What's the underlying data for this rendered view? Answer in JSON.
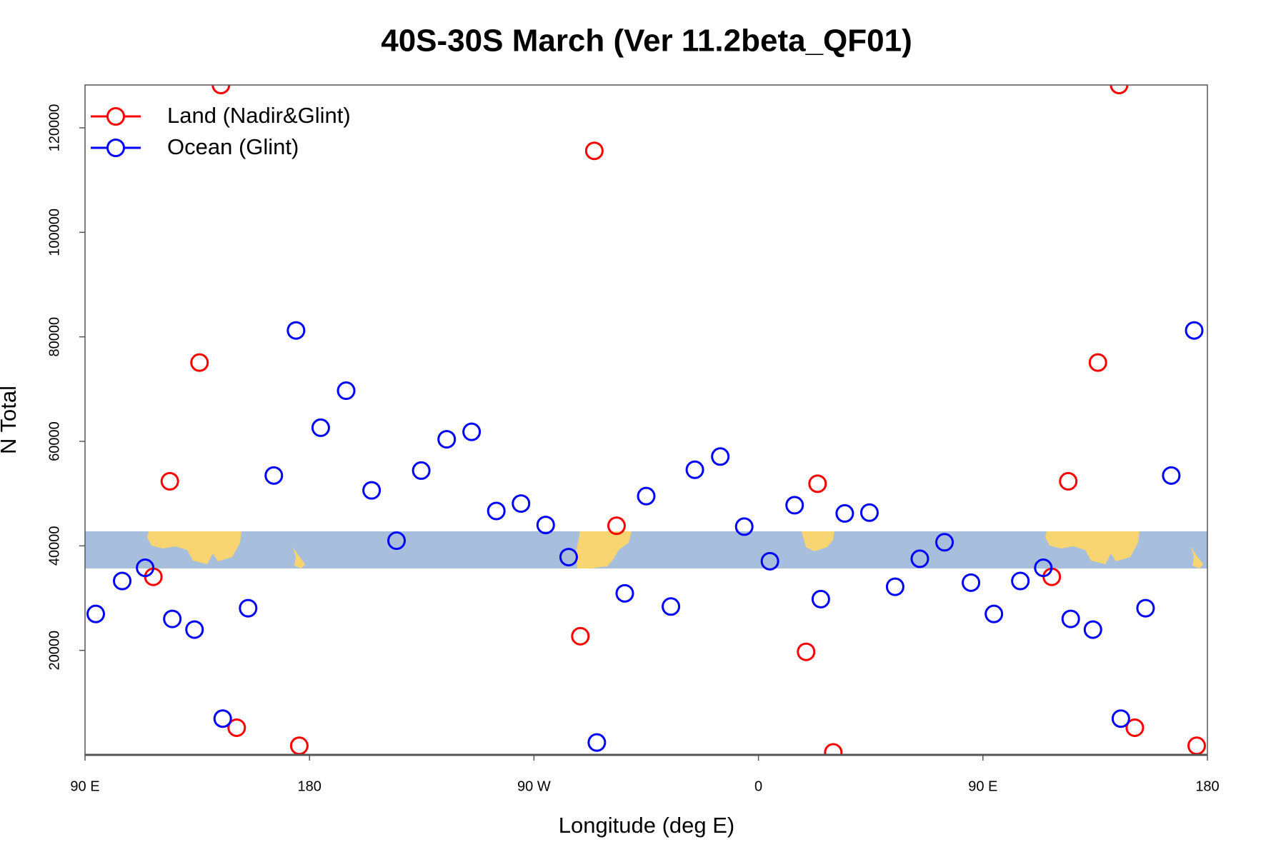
{
  "chart_data": {
    "type": "scatter",
    "title": "40S-30S March (Ver 11.2beta_QF01)",
    "x_label": "Longitude (deg E)",
    "y_label": "N Total",
    "xlim": [
      90,
      540
    ],
    "ylim": [
      0,
      128200
    ],
    "xticks": [
      {
        "value": 90,
        "label": "90 E"
      },
      180,
      {
        "value": 270,
        "label": "90 W"
      },
      {
        "value": 360,
        "label": "0"
      },
      {
        "value": 450,
        "label": "90 E"
      },
      {
        "value": 540,
        "label": "180"
      }
    ],
    "yticks": [
      20000,
      40000,
      60000,
      80000,
      100000,
      120000
    ],
    "grid": false,
    "legend_position": "top-left",
    "series": [
      {
        "name": "Land (Nadir&Glint)",
        "color": "#ff0000",
        "x": [
          117.4,
          124.0,
          135.9,
          144.5,
          150.8,
          175.9,
          288.6,
          294.2,
          303.1,
          379.1,
          383.7,
          390.0,
          477.6,
          484.2,
          496.1,
          504.6,
          510.9,
          535.7
        ],
        "values": [
          34070,
          52360,
          75080,
          128200,
          5200,
          1735,
          22710,
          115600,
          43850,
          19720,
          51890,
          470,
          34070,
          52360,
          75080,
          128200,
          5200,
          1735
        ]
      },
      {
        "name": "Ocean (Glint)",
        "color": "#0000ff",
        "x": [
          94.3,
          104.9,
          114.1,
          125.0,
          133.9,
          145.2,
          155.4,
          165.7,
          174.6,
          184.5,
          194.7,
          204.9,
          214.9,
          224.8,
          235.0,
          245.0,
          254.9,
          264.8,
          274.7,
          283.9,
          295.2,
          306.4,
          315.0,
          324.9,
          334.5,
          344.7,
          354.3,
          364.6,
          374.5,
          385.0,
          394.6,
          404.5,
          414.8,
          424.7,
          434.6,
          445.2,
          454.4,
          465.0,
          474.2,
          485.2,
          494.1,
          505.3,
          515.2,
          525.5,
          534.7
        ],
        "values": [
          26970,
          33280,
          35800,
          26020,
          23970,
          6940,
          28070,
          53460,
          81220,
          62610,
          69700,
          50620,
          41000,
          54410,
          60400,
          61820,
          46680,
          48100,
          44000,
          37850,
          2370,
          30910,
          49520,
          28390,
          54560,
          57090,
          43680,
          37060,
          47780,
          29810,
          46210,
          46360,
          32170,
          37530,
          40690,
          32960,
          26970,
          33280,
          35800,
          26020,
          23970,
          6940,
          28070,
          53460,
          81220
        ]
      }
    ]
  }
}
